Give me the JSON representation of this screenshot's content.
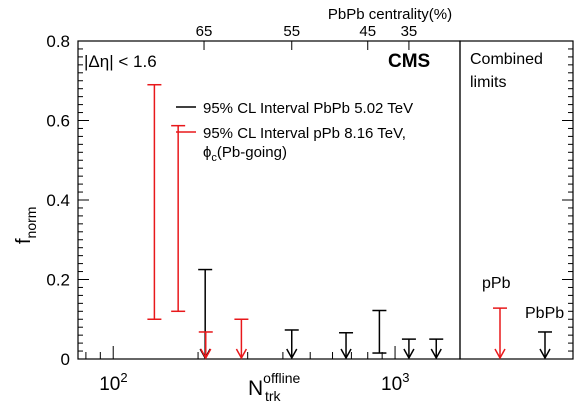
{
  "chart_data": {
    "type": "interval",
    "xaxis": {
      "scale": "log",
      "range": [
        75,
        1700
      ],
      "title_main": "N",
      "title_sup": "offline",
      "title_sub": "trk",
      "major_ticks": [
        {
          "value": 100,
          "base": "10",
          "exp": "2"
        },
        {
          "value": 1000,
          "base": "10",
          "exp": "3"
        }
      ]
    },
    "yaxis": {
      "range": [
        0,
        0.8
      ],
      "title_main": "f",
      "title_sub": "norm",
      "ticks": [
        {
          "value": 0,
          "label": "0"
        },
        {
          "value": 0.2,
          "label": "0.2"
        },
        {
          "value": 0.4,
          "label": "0.4"
        },
        {
          "value": 0.6,
          "label": "0.6"
        },
        {
          "value": 0.8,
          "label": "0.8"
        }
      ]
    },
    "top_axis": {
      "title": "PbPb centrality(%)",
      "ticks": [
        {
          "value": 210,
          "label": "65"
        },
        {
          "value": 430,
          "label": "55"
        },
        {
          "value": 800,
          "label": "45"
        },
        {
          "value": 1120,
          "label": "35"
        }
      ]
    },
    "eta_label": "|Δη| < 1.6",
    "cms_label": "CMS",
    "legend": [
      {
        "label": "95% CL Interval PbPb 5.02 TeV",
        "color": "#000000"
      },
      {
        "label": "95% CL Interval pPb 8.16 TeV,",
        "color": "#e8181b"
      }
    ],
    "legend_extra": {
      "main": "ϕ",
      "sub": "c",
      "rest": "(Pb-going)"
    },
    "series": [
      {
        "name": "PbPb",
        "color": "#000000",
        "intervals": [
          {
            "x": 212,
            "low": 0,
            "high": 0.225
          },
          {
            "x": 430,
            "low": 0,
            "high": 0.073
          },
          {
            "x": 670,
            "low": 0,
            "high": 0.066
          },
          {
            "x": 880,
            "low": 0.015,
            "high": 0.122
          },
          {
            "x": 1120,
            "low": 0,
            "high": 0.05
          },
          {
            "x": 1400,
            "low": 0,
            "high": 0.05
          }
        ]
      },
      {
        "name": "pPb",
        "color": "#e8181b",
        "intervals": [
          {
            "x": 140,
            "low": 0.1,
            "high": 0.69
          },
          {
            "x": 170,
            "low": 0.12,
            "high": 0.587
          },
          {
            "x": 213,
            "low": 0,
            "high": 0.068
          },
          {
            "x": 285,
            "low": 0,
            "high": 0.1
          }
        ]
      }
    ],
    "combined": {
      "title_line1": "Combined",
      "title_line2": "limits",
      "items": [
        {
          "label": "pPb",
          "color": "#e8181b",
          "high": 0.128
        },
        {
          "label": "PbPb",
          "color": "#000000",
          "high": 0.068
        }
      ]
    }
  }
}
